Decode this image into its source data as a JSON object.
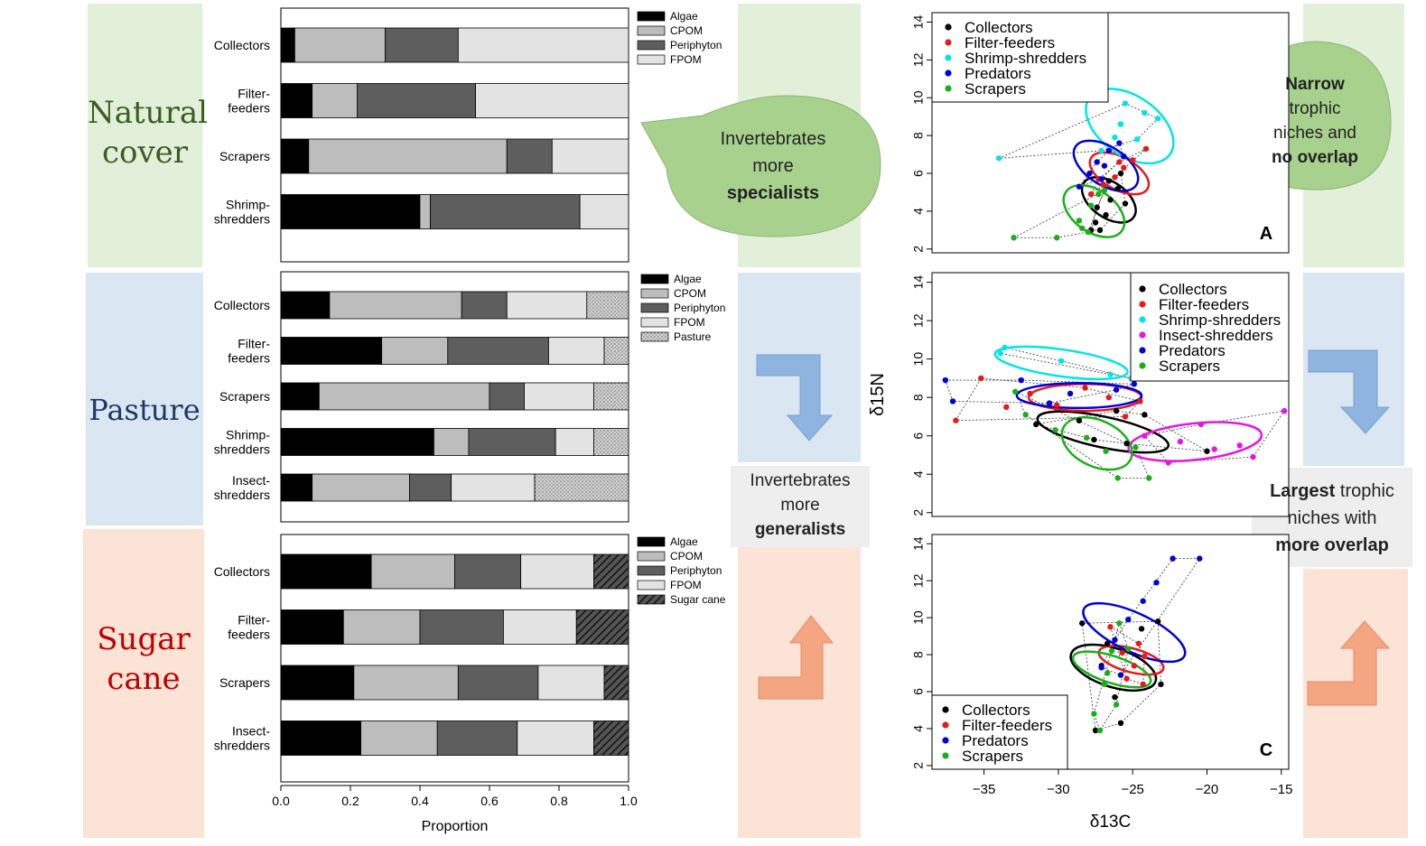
{
  "colors": {
    "natural_band": "#e2efd9",
    "pasture_band": "#dbe6f3",
    "sugar_band": "#fbe3d6",
    "bubble_fill": "#a9d18e",
    "box_fill": "#eeeeee",
    "arrow_blue": "#8fb4e0",
    "arrow_orange": "#f4a582"
  },
  "habitats": {
    "natural": [
      "Natural",
      "cover"
    ],
    "pasture": [
      "Pasture"
    ],
    "sugar": [
      "Sugar",
      "cane"
    ]
  },
  "callouts": {
    "specialists": [
      "Invertebrates",
      "more",
      "specialists"
    ],
    "narrow": [
      "Narrow",
      "trophic",
      "niches and",
      "no overlap"
    ],
    "generalists": [
      "Invertebrates",
      "more",
      "generalists"
    ],
    "largest": [
      "Largest trophic",
      "niches with",
      "more overlap"
    ]
  },
  "chart_data": [
    {
      "type": "bar",
      "orientation": "horizontal-stacked",
      "categories": [
        "Collectors",
        "Filter-feeders",
        "Scrapers",
        "Shrimp-shredders"
      ],
      "category_labels": [
        [
          "Collectors"
        ],
        [
          "Filter-",
          "feeders"
        ],
        [
          "Scrapers"
        ],
        [
          "Shrimp-",
          "shredders"
        ]
      ],
      "series": [
        {
          "name": "Algae",
          "color": "#000000",
          "values": [
            0.04,
            0.09,
            0.08,
            0.4
          ]
        },
        {
          "name": "CPOM",
          "color": "#bdbdbd",
          "values": [
            0.26,
            0.13,
            0.57,
            0.03
          ]
        },
        {
          "name": "Periphyton",
          "color": "#5e5e5e",
          "values": [
            0.21,
            0.34,
            0.13,
            0.43
          ]
        },
        {
          "name": "FPOM",
          "color": "#e3e3e3",
          "values": [
            0.49,
            0.44,
            0.22,
            0.14
          ]
        }
      ],
      "xlim": [
        0,
        1
      ]
    },
    {
      "type": "bar",
      "orientation": "horizontal-stacked",
      "categories": [
        "Collectors",
        "Filter-feeders",
        "Scrapers",
        "Shrimp-shredders",
        "Insect-shredders"
      ],
      "category_labels": [
        [
          "Collectors"
        ],
        [
          "Filter-",
          "feeders"
        ],
        [
          "Scrapers"
        ],
        [
          "Shrimp-",
          "shredders"
        ],
        [
          "Insect-",
          "shredders"
        ]
      ],
      "series": [
        {
          "name": "Algae",
          "color": "#000000",
          "values": [
            0.14,
            0.29,
            0.11,
            0.44,
            0.09
          ]
        },
        {
          "name": "CPOM",
          "color": "#bdbdbd",
          "values": [
            0.38,
            0.19,
            0.49,
            0.1,
            0.28
          ]
        },
        {
          "name": "Periphyton",
          "color": "#5e5e5e",
          "values": [
            0.13,
            0.29,
            0.1,
            0.25,
            0.12
          ]
        },
        {
          "name": "FPOM",
          "color": "#e3e3e3",
          "values": [
            0.23,
            0.16,
            0.2,
            0.11,
            0.24
          ]
        },
        {
          "name": "Pasture",
          "color": "#c8c8c8",
          "pattern": "dots",
          "values": [
            0.12,
            0.07,
            0.1,
            0.1,
            0.27
          ]
        }
      ],
      "xlim": [
        0,
        1
      ]
    },
    {
      "type": "bar",
      "orientation": "horizontal-stacked",
      "categories": [
        "Collectors",
        "Filter-feeders",
        "Scrapers",
        "Insect-shredders"
      ],
      "category_labels": [
        [
          "Collectors"
        ],
        [
          "Filter-",
          "feeders"
        ],
        [
          "Scrapers"
        ],
        [
          "Insect-",
          "shredders"
        ]
      ],
      "series": [
        {
          "name": "Algae",
          "color": "#000000",
          "values": [
            0.26,
            0.18,
            0.21,
            0.23
          ]
        },
        {
          "name": "CPOM",
          "color": "#bdbdbd",
          "values": [
            0.24,
            0.22,
            0.3,
            0.22
          ]
        },
        {
          "name": "Periphyton",
          "color": "#5e5e5e",
          "values": [
            0.19,
            0.24,
            0.23,
            0.23
          ]
        },
        {
          "name": "FPOM",
          "color": "#e3e3e3",
          "values": [
            0.21,
            0.21,
            0.19,
            0.22
          ]
        },
        {
          "name": "Sugar cane",
          "color": "#444444",
          "pattern": "hatch",
          "values": [
            0.1,
            0.15,
            0.07,
            0.1
          ]
        }
      ],
      "xlim": [
        0,
        1
      ],
      "xticks": [
        "0.0",
        "0.2",
        "0.4",
        "0.6",
        "0.8",
        "1.0"
      ],
      "xlabel": "Proportion"
    },
    {
      "type": "scatter",
      "panel_label": "A",
      "xlim": [
        -38.5,
        -14.5
      ],
      "ylim": [
        1.8,
        14.5
      ],
      "yticks": [
        "2",
        "4",
        "6",
        "8",
        "10",
        "12",
        "14"
      ],
      "legend_position": "top-left",
      "series": [
        {
          "name": "Collectors",
          "color": "#000000",
          "points": [
            [
              -27.5,
              3.4
            ],
            [
              -27.2,
              3.0
            ],
            [
              -26.8,
              3.8
            ],
            [
              -26.5,
              4.6
            ],
            [
              -26,
              5.2
            ],
            [
              -25.8,
              6.0
            ],
            [
              -26.6,
              5.6
            ],
            [
              -27.4,
              4.2
            ],
            [
              -27.8,
              3.0
            ],
            [
              -25.5,
              4.4
            ]
          ],
          "ellipse": {
            "cx": -26.6,
            "cy": 4.6,
            "rx": 1.2,
            "ry": 1.6,
            "angle": -55
          }
        },
        {
          "name": "Filter-feeders",
          "color": "#e41a1c",
          "points": [
            [
              -27.8,
              4.9
            ],
            [
              -27,
              5.4
            ],
            [
              -26.2,
              5.8
            ],
            [
              -25.6,
              6.3
            ],
            [
              -25,
              6.7
            ],
            [
              -24.1,
              7.3
            ],
            [
              -27.3,
              5.7
            ],
            [
              -25.9,
              6.6
            ]
          ],
          "ellipse": {
            "cx": -25.9,
            "cy": 6.0,
            "rx": 1.1,
            "ry": 1.7,
            "angle": -62
          }
        },
        {
          "name": "Shrimp-shredders",
          "color": "#00e5e5",
          "points": [
            [
              -34,
              6.8
            ],
            [
              -25.5,
              9.7
            ],
            [
              -24.2,
              9.2
            ],
            [
              -25.8,
              8.6
            ],
            [
              -26.2,
              7.9
            ],
            [
              -27.1,
              7.2
            ],
            [
              -23.3,
              8.9
            ],
            [
              -24.7,
              7.8
            ]
          ],
          "ellipse": {
            "cx": -25.2,
            "cy": 8.5,
            "rx": 2.0,
            "ry": 2.6,
            "angle": -55
          }
        },
        {
          "name": "Predators",
          "color": "#0000d8",
          "points": [
            [
              -28.6,
              5.3
            ],
            [
              -27.9,
              6.0
            ],
            [
              -27.4,
              6.6
            ],
            [
              -26.6,
              7.2
            ],
            [
              -25.9,
              7.6
            ],
            [
              -25.6,
              6.9
            ],
            [
              -26.9,
              6.4
            ],
            [
              -27.1,
              5.7
            ]
          ],
          "ellipse": {
            "cx": -26.8,
            "cy": 6.4,
            "rx": 1.3,
            "ry": 1.9,
            "angle": -58
          }
        },
        {
          "name": "Scrapers",
          "color": "#1aaf1a",
          "points": [
            [
              -33,
              2.6
            ],
            [
              -30.1,
              2.6
            ],
            [
              -28.6,
              3.5
            ],
            [
              -28,
              2.9
            ],
            [
              -27.8,
              4.3
            ],
            [
              -27.3,
              4.9
            ],
            [
              -26.9,
              5.1
            ],
            [
              -28.4,
              3.1
            ]
          ],
          "ellipse": {
            "cx": -27.6,
            "cy": 4.0,
            "rx": 1.4,
            "ry": 1.8,
            "angle": -55
          }
        }
      ]
    },
    {
      "type": "scatter",
      "xlim": [
        -38.5,
        -14.5
      ],
      "ylim": [
        1.8,
        14.5
      ],
      "yticks": [
        "2",
        "4",
        "6",
        "8",
        "10",
        "12",
        "14"
      ],
      "ylabel": "δ15N",
      "legend_position": "top-right",
      "series": [
        {
          "name": "Collectors",
          "color": "#000000",
          "points": [
            [
              -31.5,
              6.6
            ],
            [
              -27.6,
              5.8
            ],
            [
              -25.4,
              5.6
            ],
            [
              -24.2,
              7.1
            ],
            [
              -20,
              5.2
            ],
            [
              -28.6,
              6.8
            ],
            [
              -26.1,
              7.3
            ]
          ],
          "ellipse": {
            "cx": -27.0,
            "cy": 6.2,
            "rx": 4.5,
            "ry": 0.8,
            "angle": 12
          }
        },
        {
          "name": "Filter-feeders",
          "color": "#e41a1c",
          "points": [
            [
              -36.9,
              6.8
            ],
            [
              -35.2,
              9.0
            ],
            [
              -33.5,
              7.5
            ],
            [
              -31.9,
              8.2
            ],
            [
              -30.1,
              7.6
            ],
            [
              -28.2,
              8.5
            ],
            [
              -26.6,
              8.0
            ],
            [
              -24.5,
              7.8
            ],
            [
              -25.5,
              7.0
            ]
          ],
          "ellipse": {
            "cx": -28.2,
            "cy": 8.0,
            "rx": 3.8,
            "ry": 0.7,
            "angle": 0
          }
        },
        {
          "name": "Shrimp-shredders",
          "color": "#00e5e5",
          "points": [
            [
              -33.9,
              10.3
            ],
            [
              -33.6,
              10.6
            ],
            [
              -29.8,
              9.9
            ],
            [
              -26.5,
              9.2
            ],
            [
              -25.1,
              9.0
            ]
          ],
          "ellipse": {
            "cx": -29.8,
            "cy": 9.8,
            "rx": 4.5,
            "ry": 0.7,
            "angle": 8
          }
        },
        {
          "name": "Insect-shredders",
          "color": "#e815e0",
          "points": [
            [
              -24.2,
              6.0
            ],
            [
              -21.8,
              5.7
            ],
            [
              -19.5,
              5.3
            ],
            [
              -17.8,
              5.5
            ],
            [
              -16.9,
              4.9
            ],
            [
              -14.8,
              7.3
            ],
            [
              -22.6,
              4.6
            ],
            [
              -20.4,
              6.6
            ]
          ],
          "ellipse": {
            "cx": -20.8,
            "cy": 5.7,
            "rx": 4.5,
            "ry": 0.95,
            "angle": -6
          }
        },
        {
          "name": "Predators",
          "color": "#0000d8",
          "points": [
            [
              -37.6,
              8.9
            ],
            [
              -37.1,
              7.8
            ],
            [
              -32.5,
              8.9
            ],
            [
              -29.2,
              8.2
            ],
            [
              -26.1,
              8.4
            ],
            [
              -24.9,
              8.7
            ],
            [
              -30.6,
              7.7
            ]
          ],
          "ellipse": {
            "cx": -28.6,
            "cy": 8.1,
            "rx": 4.2,
            "ry": 0.65,
            "angle": 0
          }
        },
        {
          "name": "Scrapers",
          "color": "#1aaf1a",
          "points": [
            [
              -32.9,
              8.3
            ],
            [
              -32.2,
              7.1
            ],
            [
              -30.2,
              6.3
            ],
            [
              -28.1,
              5.9
            ],
            [
              -26,
              3.8
            ],
            [
              -23.9,
              3.8
            ],
            [
              -24.8,
              5.4
            ],
            [
              -26.8,
              5.2
            ]
          ],
          "ellipse": {
            "cx": -27.4,
            "cy": 5.6,
            "rx": 2.5,
            "ry": 1.2,
            "angle": 25
          }
        }
      ]
    },
    {
      "type": "scatter",
      "panel_label": "C",
      "xlim": [
        -38.5,
        -14.5
      ],
      "ylim": [
        1.8,
        14.5
      ],
      "xticks": [
        "−35",
        "−30",
        "−25",
        "−20",
        "−15"
      ],
      "yticks": [
        "2",
        "4",
        "6",
        "8",
        "10",
        "12",
        "14"
      ],
      "xlabel": "δ13C",
      "legend_position": "bottom-left",
      "series": [
        {
          "name": "Collectors",
          "color": "#000000",
          "points": [
            [
              -28.4,
              9.7
            ],
            [
              -27.5,
              3.9
            ],
            [
              -26.7,
              8.6
            ],
            [
              -25.8,
              4.3
            ],
            [
              -23.3,
              9.8
            ],
            [
              -23.1,
              6.4
            ],
            [
              -24.4,
              9.4
            ],
            [
              -26.2,
              5.7
            ],
            [
              -27.1,
              7.4
            ]
          ],
          "ellipse": {
            "cx": -26.3,
            "cy": 7.3,
            "rx": 1.3,
            "ry": 2.4,
            "angle": -72
          }
        },
        {
          "name": "Filter-feeders",
          "color": "#e41a1c",
          "points": [
            [
              -26.5,
              9.5
            ],
            [
              -25.7,
              8.1
            ],
            [
              -24.9,
              7.4
            ],
            [
              -24.3,
              6.4
            ],
            [
              -24.6,
              8.6
            ],
            [
              -25.4,
              6.7
            ],
            [
              -24.2,
              7.9
            ]
          ],
          "ellipse": {
            "cx": -25.1,
            "cy": 7.7,
            "rx": 0.8,
            "ry": 1.8,
            "angle": -75
          }
        },
        {
          "name": "Predators",
          "color": "#0000d8",
          "points": [
            [
              -27.1,
              7.3
            ],
            [
              -26.2,
              8.8
            ],
            [
              -25.3,
              9.9
            ],
            [
              -24.3,
              10.9
            ],
            [
              -23.4,
              11.9
            ],
            [
              -22.3,
              13.2
            ],
            [
              -20.5,
              13.2
            ],
            [
              -25.8,
              6.9
            ]
          ],
          "ellipse": {
            "cx": -24.9,
            "cy": 9.2,
            "rx": 1.3,
            "ry": 3.0,
            "angle": -65
          }
        },
        {
          "name": "Scrapers",
          "color": "#1aaf1a",
          "points": [
            [
              -27.6,
              4.8
            ],
            [
              -27.2,
              3.9
            ],
            [
              -26.9,
              6.4
            ],
            [
              -26.4,
              8.2
            ],
            [
              -25.9,
              9.7
            ],
            [
              -25.3,
              8.3
            ],
            [
              -26.1,
              5.3
            ],
            [
              -26.7,
              7.0
            ]
          ],
          "ellipse": {
            "cx": -26.4,
            "cy": 7.2,
            "rx": 0.9,
            "ry": 2.2,
            "angle": -72
          }
        }
      ]
    }
  ]
}
